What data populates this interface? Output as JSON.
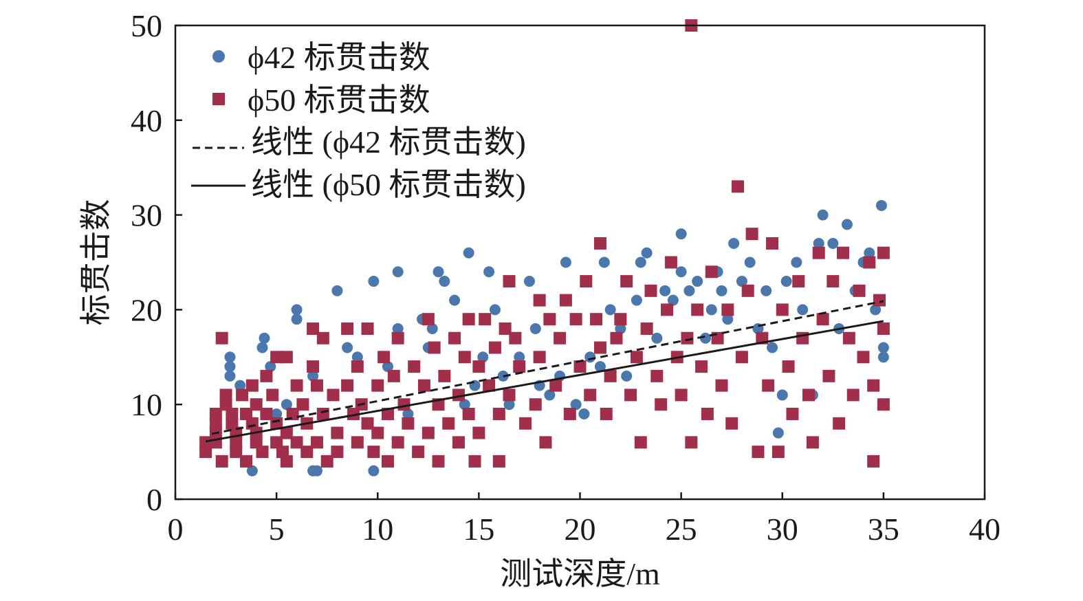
{
  "chart_data": {
    "type": "scatter",
    "xlabel": "测试深度/m",
    "ylabel": "标贯击数",
    "xlim": [
      0,
      40
    ],
    "ylim": [
      0,
      50
    ],
    "xticks": [
      "0",
      "5",
      "10",
      "15",
      "20",
      "25",
      "30",
      "35",
      "40"
    ],
    "yticks": [
      "0",
      "10",
      "20",
      "30",
      "40",
      "50"
    ],
    "grid": false,
    "legend_position": "top-left",
    "legend": [
      {
        "label": "ϕ42 标贯击数",
        "marker": "circle"
      },
      {
        "label": "ϕ50 标贯击数",
        "marker": "square"
      },
      {
        "label": "线性 (ϕ42 标贯击数)",
        "marker": "dashed-line"
      },
      {
        "label": "线性 (ϕ50 标贯击数)",
        "marker": "solid-line"
      }
    ],
    "colors": {
      "phi42": "#4a78ad",
      "phi50": "#a12f4c",
      "trend42": "#1a1a1a",
      "trend50": "#1a1a1a",
      "axis": "#1a1a1a"
    },
    "series": [
      {
        "name": "ϕ42 标贯击数",
        "marker": "circle",
        "points": [
          [
            2.7,
            15
          ],
          [
            2.7,
            14
          ],
          [
            2.7,
            13
          ],
          [
            3.2,
            12
          ],
          [
            3.8,
            3
          ],
          [
            4.3,
            16
          ],
          [
            4.4,
            17
          ],
          [
            4.7,
            14
          ],
          [
            5.0,
            9
          ],
          [
            5.5,
            10
          ],
          [
            6.0,
            20
          ],
          [
            6.0,
            19
          ],
          [
            6.5,
            8
          ],
          [
            6.8,
            13
          ],
          [
            6.8,
            3
          ],
          [
            7.0,
            3
          ],
          [
            8.0,
            22
          ],
          [
            8.5,
            16
          ],
          [
            9.0,
            15
          ],
          [
            9.8,
            23
          ],
          [
            9.8,
            3
          ],
          [
            10.5,
            14
          ],
          [
            11.0,
            24
          ],
          [
            11.0,
            18
          ],
          [
            11.5,
            9
          ],
          [
            12.2,
            19
          ],
          [
            12.5,
            16
          ],
          [
            12.7,
            18
          ],
          [
            13.0,
            24
          ],
          [
            13.3,
            23
          ],
          [
            13.8,
            21
          ],
          [
            14.3,
            10
          ],
          [
            14.5,
            26
          ],
          [
            14.8,
            12
          ],
          [
            15.2,
            15
          ],
          [
            15.5,
            24
          ],
          [
            15.8,
            20
          ],
          [
            16.2,
            13
          ],
          [
            16.5,
            10
          ],
          [
            17.0,
            15
          ],
          [
            17.5,
            23
          ],
          [
            17.8,
            18
          ],
          [
            18.0,
            12
          ],
          [
            18.5,
            11
          ],
          [
            19.0,
            13
          ],
          [
            19.3,
            25
          ],
          [
            19.8,
            10
          ],
          [
            20.2,
            9
          ],
          [
            20.5,
            15
          ],
          [
            21.0,
            14
          ],
          [
            21.2,
            25
          ],
          [
            21.5,
            20
          ],
          [
            22.0,
            18
          ],
          [
            22.3,
            13
          ],
          [
            22.8,
            21
          ],
          [
            23.0,
            25
          ],
          [
            23.3,
            26
          ],
          [
            23.8,
            17
          ],
          [
            24.2,
            22
          ],
          [
            24.6,
            21
          ],
          [
            25.0,
            28
          ],
          [
            25.0,
            24
          ],
          [
            25.4,
            22
          ],
          [
            25.8,
            23
          ],
          [
            26.2,
            17
          ],
          [
            26.5,
            20
          ],
          [
            26.8,
            24
          ],
          [
            27.0,
            22
          ],
          [
            27.3,
            19
          ],
          [
            27.6,
            27
          ],
          [
            28.0,
            23
          ],
          [
            28.4,
            25
          ],
          [
            28.8,
            18
          ],
          [
            29.2,
            22
          ],
          [
            29.5,
            16
          ],
          [
            29.8,
            7
          ],
          [
            30.0,
            11
          ],
          [
            30.2,
            23
          ],
          [
            30.7,
            25
          ],
          [
            31.0,
            20
          ],
          [
            31.5,
            11
          ],
          [
            31.8,
            27
          ],
          [
            32.0,
            30
          ],
          [
            32.5,
            27
          ],
          [
            32.8,
            18
          ],
          [
            33.2,
            29
          ],
          [
            33.6,
            22
          ],
          [
            34.0,
            25
          ],
          [
            34.3,
            26
          ],
          [
            34.6,
            20
          ],
          [
            34.9,
            31
          ],
          [
            35.0,
            16
          ],
          [
            35.0,
            15
          ]
        ]
      },
      {
        "name": "ϕ50 标贯击数",
        "marker": "square",
        "points": [
          [
            1.5,
            6
          ],
          [
            1.5,
            5
          ],
          [
            2.0,
            9
          ],
          [
            2.0,
            8
          ],
          [
            2.0,
            7
          ],
          [
            2.0,
            6
          ],
          [
            2.3,
            17
          ],
          [
            2.3,
            4
          ],
          [
            2.5,
            11
          ],
          [
            2.5,
            10
          ],
          [
            2.8,
            9
          ],
          [
            2.8,
            8
          ],
          [
            3.0,
            7
          ],
          [
            3.0,
            6
          ],
          [
            3.0,
            5
          ],
          [
            3.3,
            11
          ],
          [
            3.5,
            9
          ],
          [
            3.5,
            4
          ],
          [
            3.8,
            12
          ],
          [
            3.8,
            8
          ],
          [
            4.0,
            10
          ],
          [
            4.0,
            7
          ],
          [
            4.0,
            6
          ],
          [
            4.3,
            5
          ],
          [
            4.5,
            13
          ],
          [
            4.5,
            9
          ],
          [
            4.8,
            11
          ],
          [
            5.0,
            15
          ],
          [
            5.0,
            8
          ],
          [
            5.0,
            6
          ],
          [
            5.3,
            5
          ],
          [
            5.5,
            15
          ],
          [
            5.5,
            7
          ],
          [
            5.5,
            4
          ],
          [
            5.8,
            9
          ],
          [
            6.0,
            12
          ],
          [
            6.0,
            6
          ],
          [
            6.3,
            10
          ],
          [
            6.5,
            8
          ],
          [
            6.5,
            5
          ],
          [
            6.8,
            18
          ],
          [
            6.8,
            14
          ],
          [
            7.0,
            12
          ],
          [
            7.0,
            6
          ],
          [
            7.3,
            17
          ],
          [
            7.3,
            9
          ],
          [
            7.5,
            4
          ],
          [
            7.8,
            11
          ],
          [
            8.0,
            7
          ],
          [
            8.0,
            5
          ],
          [
            8.5,
            18
          ],
          [
            8.5,
            12
          ],
          [
            8.8,
            9
          ],
          [
            9.0,
            14
          ],
          [
            9.0,
            6
          ],
          [
            9.2,
            10
          ],
          [
            9.5,
            18
          ],
          [
            9.5,
            8
          ],
          [
            9.8,
            5
          ],
          [
            10.0,
            12
          ],
          [
            10.0,
            7
          ],
          [
            10.3,
            15
          ],
          [
            10.5,
            9
          ],
          [
            10.5,
            4
          ],
          [
            10.8,
            13
          ],
          [
            11.0,
            17
          ],
          [
            11.0,
            6
          ],
          [
            11.3,
            10
          ],
          [
            11.5,
            8
          ],
          [
            11.8,
            14
          ],
          [
            12.0,
            5
          ],
          [
            12.3,
            12
          ],
          [
            12.5,
            19
          ],
          [
            12.5,
            7
          ],
          [
            12.8,
            16
          ],
          [
            13.0,
            10
          ],
          [
            13.0,
            4
          ],
          [
            13.3,
            13
          ],
          [
            13.5,
            8
          ],
          [
            13.8,
            17
          ],
          [
            14.0,
            11
          ],
          [
            14.0,
            6
          ],
          [
            14.3,
            15
          ],
          [
            14.5,
            19
          ],
          [
            14.5,
            9
          ],
          [
            14.8,
            4
          ],
          [
            15.0,
            14
          ],
          [
            15.0,
            7
          ],
          [
            15.3,
            19
          ],
          [
            15.5,
            12
          ],
          [
            15.8,
            16
          ],
          [
            16.0,
            9
          ],
          [
            16.0,
            4
          ],
          [
            16.3,
            18
          ],
          [
            16.5,
            23
          ],
          [
            16.5,
            11
          ],
          [
            16.8,
            17
          ],
          [
            17.0,
            14
          ],
          [
            17.3,
            8
          ],
          [
            17.8,
            10
          ],
          [
            18.0,
            21
          ],
          [
            18.0,
            15
          ],
          [
            18.3,
            6
          ],
          [
            18.5,
            19
          ],
          [
            18.8,
            12
          ],
          [
            19.0,
            17
          ],
          [
            19.3,
            21
          ],
          [
            19.5,
            9
          ],
          [
            19.8,
            19
          ],
          [
            20.0,
            14
          ],
          [
            20.3,
            23
          ],
          [
            20.5,
            11
          ],
          [
            20.8,
            19
          ],
          [
            21.0,
            27
          ],
          [
            21.0,
            16
          ],
          [
            21.3,
            9
          ],
          [
            21.5,
            13
          ],
          [
            21.8,
            17
          ],
          [
            22.0,
            19
          ],
          [
            22.3,
            23
          ],
          [
            22.5,
            11
          ],
          [
            22.8,
            15
          ],
          [
            23.0,
            6
          ],
          [
            23.3,
            18
          ],
          [
            23.5,
            22
          ],
          [
            23.8,
            13
          ],
          [
            24.0,
            10
          ],
          [
            24.3,
            20
          ],
          [
            24.5,
            25
          ],
          [
            24.8,
            15
          ],
          [
            25.0,
            11
          ],
          [
            25.3,
            17
          ],
          [
            25.5,
            50
          ],
          [
            25.5,
            6
          ],
          [
            25.8,
            20
          ],
          [
            26.0,
            14
          ],
          [
            26.3,
            9
          ],
          [
            26.5,
            24
          ],
          [
            26.8,
            17
          ],
          [
            27.0,
            12
          ],
          [
            27.3,
            20
          ],
          [
            27.5,
            8
          ],
          [
            27.8,
            33
          ],
          [
            28.0,
            15
          ],
          [
            28.3,
            22
          ],
          [
            28.5,
            28
          ],
          [
            28.8,
            5
          ],
          [
            29.0,
            17
          ],
          [
            29.3,
            12
          ],
          [
            29.5,
            27
          ],
          [
            29.8,
            5
          ],
          [
            30.0,
            20
          ],
          [
            30.3,
            14
          ],
          [
            30.5,
            9
          ],
          [
            30.8,
            23
          ],
          [
            31.0,
            17
          ],
          [
            31.3,
            11
          ],
          [
            31.5,
            6
          ],
          [
            31.8,
            26
          ],
          [
            32.0,
            19
          ],
          [
            32.3,
            13
          ],
          [
            32.5,
            23
          ],
          [
            32.8,
            8
          ],
          [
            33.0,
            26
          ],
          [
            33.3,
            17
          ],
          [
            33.5,
            11
          ],
          [
            33.8,
            22
          ],
          [
            34.0,
            15
          ],
          [
            34.3,
            25
          ],
          [
            34.5,
            4
          ],
          [
            34.5,
            12
          ],
          [
            34.8,
            21
          ],
          [
            35.0,
            26
          ],
          [
            35.0,
            18
          ],
          [
            35.0,
            10
          ]
        ]
      }
    ],
    "trend_lines": [
      {
        "name": "线性 (ϕ42 标贯击数)",
        "style": "dashed",
        "x": [
          1.8,
          35.0
        ],
        "y": [
          6.9,
          20.9
        ]
      },
      {
        "name": "线性 (ϕ50 标贯击数)",
        "style": "solid",
        "x": [
          1.5,
          35.0
        ],
        "y": [
          6.1,
          18.8
        ]
      }
    ]
  }
}
